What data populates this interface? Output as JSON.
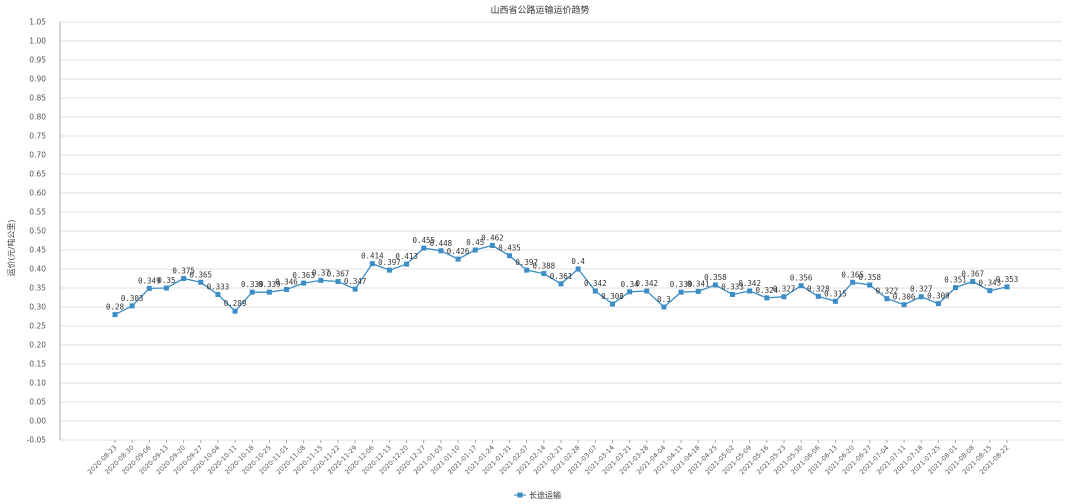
{
  "chart_data": {
    "type": "line",
    "title": "山西省公路运输运价趋势",
    "ylabel": "运价(元/吨公里)",
    "xlabel": "",
    "ylim": [
      -0.05,
      1.05
    ],
    "ytick_step": 0.05,
    "grid": true,
    "legend_position": "bottom-center",
    "color": "#3c8dc6",
    "categories": [
      "2020-08-23",
      "2020-08-30",
      "2020-09-06",
      "2020-09-13",
      "2020-09-20",
      "2020-09-27",
      "2020-10-04",
      "2020-10-11",
      "2020-10-18",
      "2020-10-25",
      "2020-11-01",
      "2020-11-08",
      "2020-11-15",
      "2020-11-22",
      "2020-11-29",
      "2020-12-06",
      "2020-12-13",
      "2020-12-20",
      "2020-12-27",
      "2021-01-03",
      "2021-01-10",
      "2021-01-17",
      "2021-01-24",
      "2021-01-31",
      "2021-02-07",
      "2021-02-14",
      "2021-02-21",
      "2021-02-28",
      "2021-03-07",
      "2021-03-14",
      "2021-03-21",
      "2021-03-28",
      "2021-04-04",
      "2021-04-11",
      "2021-04-18",
      "2021-04-25",
      "2021-05-02",
      "2021-05-09",
      "2021-05-16",
      "2021-05-23",
      "2021-05-30",
      "2021-06-06",
      "2021-06-13",
      "2021-06-20",
      "2021-06-27",
      "2021-07-04",
      "2021-07-11",
      "2021-07-18",
      "2021-07-25",
      "2021-08-01",
      "2021-08-08",
      "2021-08-15",
      "2021-08-22"
    ],
    "series": [
      {
        "name": "长途运输",
        "values": [
          0.28,
          0.303,
          0.349,
          0.35,
          0.375,
          0.365,
          0.333,
          0.289,
          0.339,
          0.339,
          0.346,
          0.363,
          0.37,
          0.367,
          0.347,
          0.414,
          0.397,
          0.413,
          0.455,
          0.448,
          0.426,
          0.45,
          0.462,
          0.435,
          0.397,
          0.388,
          0.361,
          0.4,
          0.342,
          0.308,
          0.34,
          0.342,
          0.3,
          0.339,
          0.341,
          0.358,
          0.333,
          0.342,
          0.324,
          0.327,
          0.356,
          0.328,
          0.315,
          0.365,
          0.358,
          0.322,
          0.306,
          0.327,
          0.309,
          0.351,
          0.367,
          0.343,
          0.353
        ],
        "labels": [
          "0.28",
          "0.303",
          "0.349",
          "0.35",
          "0.375",
          "0.365",
          "0.333",
          "0.289",
          "0.339",
          "0.339",
          "0.346",
          "0.363",
          "0.37",
          "0.367",
          "0.347",
          "0.414",
          "0.397",
          "0.413",
          "0.455",
          "0.448",
          "0.426",
          "0.45",
          "0.462",
          "0.435",
          "0.397",
          "0.388",
          "0.361",
          "0.4",
          "0.342",
          "0.308",
          "0.34",
          "0.342",
          "0.3",
          "0.339",
          "0.341",
          "0.358",
          "0.333",
          "0.342",
          "0.324",
          "0.327",
          "0.356",
          "0.328",
          "0.315",
          "0.365",
          "0.358",
          "0.322",
          "0.306",
          "0.327",
          "0.309",
          "0.351",
          "0.367",
          "0.343",
          "0.353"
        ]
      }
    ]
  }
}
